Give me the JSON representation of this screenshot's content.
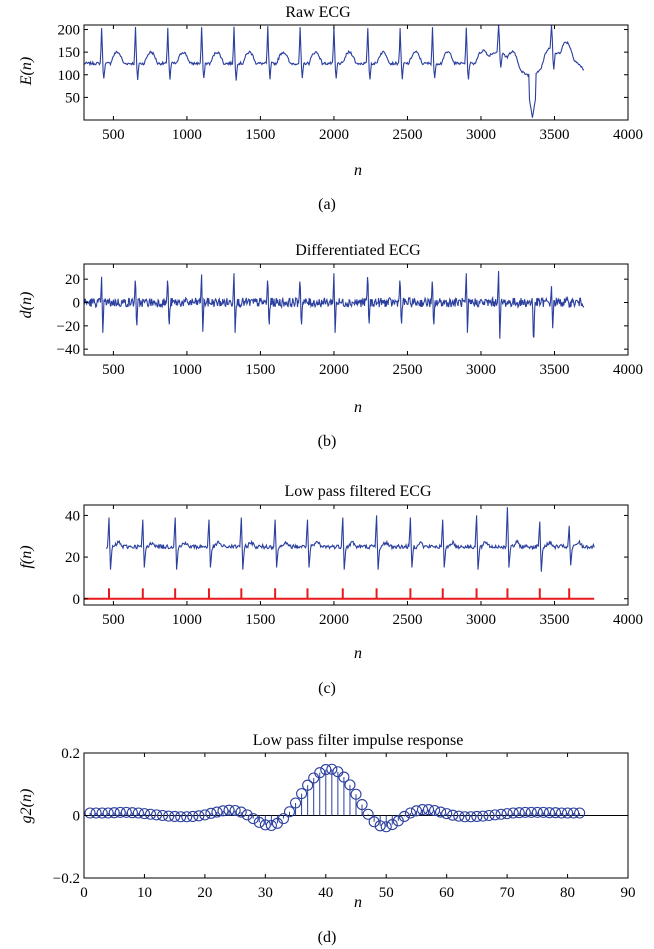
{
  "figure": {
    "panels": [
      {
        "key": "a",
        "title": "Raw ECG",
        "ylabel": "E(n)",
        "xlabel": "n",
        "caption": "(a)",
        "xticks": [
          "500",
          "1000",
          "1500",
          "2000",
          "2500",
          "3000",
          "3500",
          "4000"
        ],
        "yticks": [
          "50",
          "100",
          "150",
          "200"
        ]
      },
      {
        "key": "b",
        "title": "Differentiated ECG",
        "ylabel": "d(n)",
        "xlabel": "n",
        "caption": "(b)",
        "xticks": [
          "500",
          "1000",
          "1500",
          "2000",
          "2500",
          "3000",
          "3500",
          "4000"
        ],
        "yticks": [
          "20",
          "0",
          "−20",
          "−40"
        ]
      },
      {
        "key": "c",
        "title": "Low pass filtered ECG",
        "ylabel": "f(n)",
        "xlabel": "n",
        "caption": "(c)",
        "xticks": [
          "500",
          "1000",
          "1500",
          "2000",
          "2500",
          "3000",
          "3500",
          "4000"
        ],
        "yticks": [
          "40",
          "20",
          "0"
        ]
      },
      {
        "key": "d",
        "title": "Low pass filter impulse response",
        "ylabel": "g2(n)",
        "xlabel": "n",
        "caption": "(d)",
        "xticks": [
          "0",
          "10",
          "20",
          "30",
          "40",
          "50",
          "60",
          "70",
          "80",
          "90"
        ],
        "yticks": [
          "0.2",
          "0",
          "−0.2"
        ]
      }
    ]
  },
  "chart_data": [
    {
      "type": "line",
      "title": "Raw ECG",
      "xlabel": "n",
      "ylabel": "E(n)",
      "xlim": [
        300,
        4000
      ],
      "ylim": [
        0,
        210
      ],
      "color": "#2b3f9e",
      "series": [
        {
          "x_range": [
            300,
            3700
          ],
          "baseline": 125,
          "r_peaks_x": [
            420,
            650,
            870,
            1100,
            1320,
            1550,
            1770,
            2000,
            2230,
            2450,
            2670,
            2900,
            3120,
            3350,
            3480
          ],
          "r_peak_value": 205,
          "min_value": 5,
          "min_at_x": 3350
        }
      ]
    },
    {
      "type": "line",
      "title": "Differentiated ECG",
      "xlabel": "n",
      "ylabel": "d(n)",
      "xlim": [
        300,
        4000
      ],
      "ylim": [
        -45,
        33
      ],
      "color": "#2b3f9e",
      "series": [
        {
          "x_range": [
            300,
            3700
          ],
          "peaks": [
            {
              "x": 420,
              "max": 22,
              "min": -26
            },
            {
              "x": 650,
              "max": 25,
              "min": -26
            },
            {
              "x": 870,
              "max": 25,
              "min": -25
            },
            {
              "x": 1100,
              "max": 24,
              "min": -25
            },
            {
              "x": 1320,
              "max": 25,
              "min": -26
            },
            {
              "x": 1550,
              "max": 25,
              "min": -25
            },
            {
              "x": 1770,
              "max": 24,
              "min": -25
            },
            {
              "x": 2000,
              "max": 25,
              "min": -26
            },
            {
              "x": 2230,
              "max": 29,
              "min": -24
            },
            {
              "x": 2450,
              "max": 25,
              "min": -24
            },
            {
              "x": 2670,
              "max": 24,
              "min": -25
            },
            {
              "x": 2900,
              "max": 25,
              "min": -26
            },
            {
              "x": 3120,
              "max": 27,
              "min": -31
            },
            {
              "x": 3350,
              "max": 5,
              "min": -40
            },
            {
              "x": 3480,
              "max": 14,
              "min": -22
            }
          ]
        }
      ]
    },
    {
      "type": "line",
      "title": "Low pass filtered ECG",
      "xlabel": "n",
      "ylabel": "f(n)",
      "xlim": [
        300,
        4000
      ],
      "ylim": [
        -3,
        45
      ],
      "series": [
        {
          "name": "",
          "color": "#2b3f9e",
          "x_range": [
            450,
            3770
          ],
          "baseline": 25,
          "peaks": [
            {
              "x": 470,
              "max": 39,
              "min": 14
            },
            {
              "x": 700,
              "max": 38,
              "min": 15
            },
            {
              "x": 920,
              "max": 39,
              "min": 14
            },
            {
              "x": 1150,
              "max": 38,
              "min": 15
            },
            {
              "x": 1370,
              "max": 39,
              "min": 14
            },
            {
              "x": 1600,
              "max": 38,
              "min": 15
            },
            {
              "x": 1820,
              "max": 38,
              "min": 15
            },
            {
              "x": 2060,
              "max": 39,
              "min": 14
            },
            {
              "x": 2290,
              "max": 40,
              "min": 14
            },
            {
              "x": 2520,
              "max": 39,
              "min": 15
            },
            {
              "x": 2740,
              "max": 38,
              "min": 15
            },
            {
              "x": 2970,
              "max": 40,
              "min": 14
            },
            {
              "x": 3180,
              "max": 44,
              "min": 15
            },
            {
              "x": 3400,
              "max": 37,
              "min": 13
            },
            {
              "x": 3600,
              "max": 35,
              "min": 16
            }
          ]
        },
        {
          "name": "",
          "color": "#e8191b",
          "x_range": [
            300,
            3770
          ],
          "baseline": 0,
          "marker_x": [
            470,
            700,
            920,
            1150,
            1370,
            1600,
            1820,
            2060,
            2290,
            2520,
            2740,
            2970,
            3180,
            3400,
            3600
          ],
          "marker_value": 5
        }
      ]
    },
    {
      "type": "scatter",
      "title": "Low pass filter impulse response",
      "xlabel": "n",
      "ylabel": "g2(n)",
      "xlim": [
        0,
        90
      ],
      "ylim": [
        -0.2,
        0.2
      ],
      "color": "#2b3f9e",
      "stem": true,
      "x": [
        1,
        2,
        3,
        4,
        5,
        6,
        7,
        8,
        9,
        10,
        11,
        12,
        13,
        14,
        15,
        16,
        17,
        18,
        19,
        20,
        21,
        22,
        23,
        24,
        25,
        26,
        27,
        28,
        29,
        30,
        31,
        32,
        33,
        34,
        35,
        36,
        37,
        38,
        39,
        40,
        41,
        42,
        43,
        44,
        45,
        46,
        47,
        48,
        49,
        50,
        51,
        52,
        53,
        54,
        55,
        56,
        57,
        58,
        59,
        60,
        61,
        62,
        63,
        64,
        65,
        66,
        67,
        68,
        69,
        70,
        71,
        72,
        73,
        74,
        75,
        76,
        77,
        78,
        79,
        80,
        81,
        82
      ],
      "values": [
        0.008,
        0.008,
        0.008,
        0.008,
        0.009,
        0.01,
        0.01,
        0.009,
        0.008,
        0.006,
        0.004,
        0.002,
        0.0,
        -0.002,
        -0.003,
        -0.004,
        -0.004,
        -0.003,
        -0.001,
        0.002,
        0.007,
        0.011,
        0.015,
        0.017,
        0.016,
        0.011,
        0.002,
        -0.01,
        -0.022,
        -0.03,
        -0.032,
        -0.025,
        -0.01,
        0.012,
        0.04,
        0.07,
        0.097,
        0.12,
        0.137,
        0.147,
        0.148,
        0.14,
        0.123,
        0.098,
        0.068,
        0.035,
        0.004,
        -0.02,
        -0.033,
        -0.036,
        -0.029,
        -0.017,
        -0.003,
        0.008,
        0.015,
        0.019,
        0.019,
        0.016,
        0.011,
        0.006,
        0.001,
        -0.002,
        -0.004,
        -0.004,
        -0.003,
        -0.002,
        0.0,
        0.002,
        0.004,
        0.006,
        0.008,
        0.009,
        0.01,
        0.01,
        0.01,
        0.01,
        0.009,
        0.009,
        0.008,
        0.008,
        0.008,
        0.008
      ]
    }
  ]
}
